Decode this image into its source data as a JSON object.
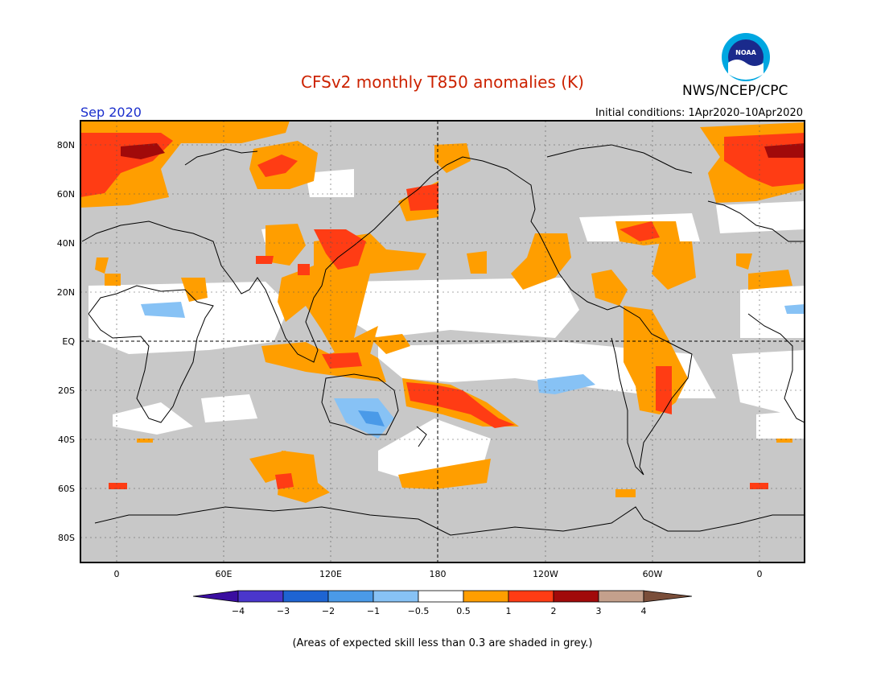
{
  "header": {
    "title": "CFSv2 monthly T850 anomalies (K)",
    "month": "Sep 2020",
    "initial_conditions": "Initial conditions: 1Apr2020–10Apr2020",
    "agency": "NWS/NCEP/CPC",
    "logo_text": "NOAA"
  },
  "colors": {
    "title": "#cc2200",
    "month": "#1a2ecc",
    "skill_grey": "#c8c8c8",
    "frame": "#000000"
  },
  "map": {
    "lat_labels": [
      "80N",
      "60N",
      "40N",
      "20N",
      "EQ",
      "20S",
      "40S",
      "60S",
      "80S"
    ],
    "lon_labels": [
      "0",
      "60E",
      "120E",
      "180",
      "120W",
      "60W",
      "0"
    ]
  },
  "legend": {
    "tick_labels": [
      "−4",
      "−3",
      "−2",
      "−1",
      "−0.5",
      "0.5",
      "1",
      "2",
      "3",
      "4"
    ],
    "colors": [
      "#3a0ea0",
      "#4a36cc",
      "#1e64d2",
      "#4a9ae8",
      "#87c2f5",
      "#ffffff",
      "#ff9e00",
      "#ff3c14",
      "#a10a0a",
      "#c4a08c",
      "#7a4e3a"
    ]
  },
  "footnote": "(Areas of expected skill less than 0.3 are shaded in grey.)"
}
